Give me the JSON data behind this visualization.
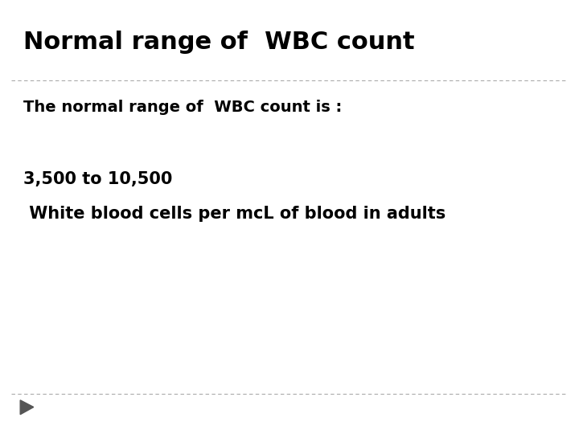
{
  "title": "Normal range of  WBC count",
  "subtitle": "The normal range of  WBC count is :",
  "body_line1": "3,500 to 10,500",
  "body_line2": " White blood cells per mcL of blood in adults",
  "bg_color": "#ffffff",
  "text_color": "#000000",
  "title_fontsize": 22,
  "subtitle_fontsize": 14,
  "body_fontsize": 15,
  "separator_color": "#aaaaaa",
  "arrow_color": "#555555"
}
